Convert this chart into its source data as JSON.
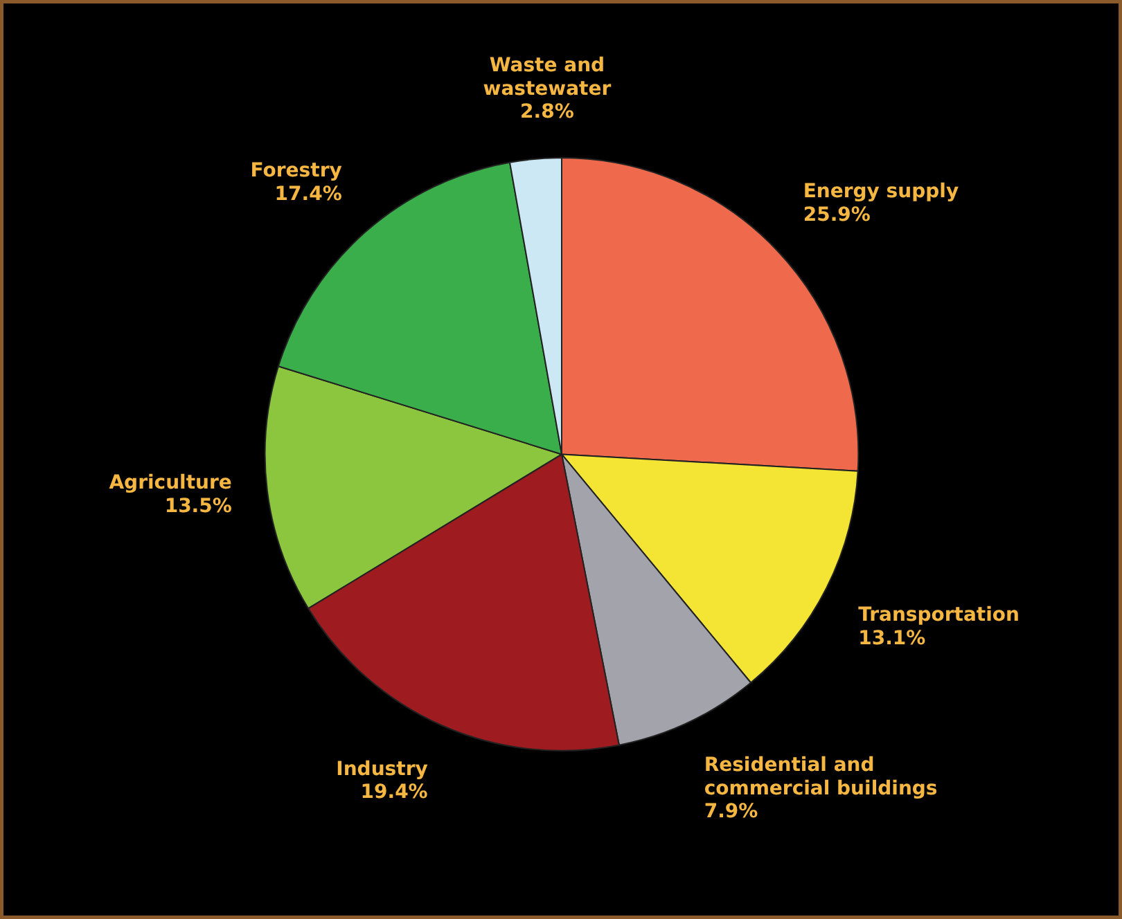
{
  "chart_data": {
    "type": "pie",
    "categories": [
      "Energy supply",
      "Transportation",
      "Residential and\ncommercial buildings",
      "Industry",
      "Agriculture",
      "Forestry",
      "Waste and\nwastewater"
    ],
    "values": [
      25.9,
      13.1,
      7.9,
      19.4,
      13.5,
      17.4,
      2.8
    ],
    "value_labels": [
      "25.9%",
      "13.1%",
      "7.9%",
      "19.4%",
      "13.5%",
      "17.4%",
      "2.8%"
    ],
    "colors": [
      "#ef6a4c",
      "#f4e534",
      "#a3a3ab",
      "#9e1b20",
      "#8cc63f",
      "#3aae4a",
      "#cce8f4"
    ]
  }
}
